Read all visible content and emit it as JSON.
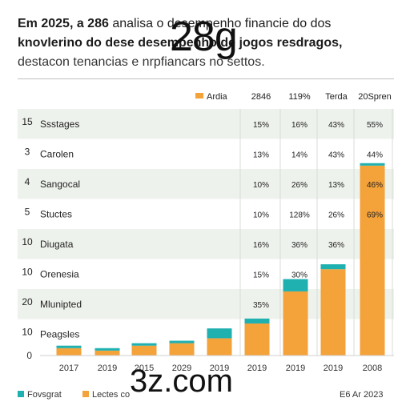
{
  "header": {
    "line1_bold": "Em 2025, a 286",
    "line1_rest": "analisa o desempenho financie do dos",
    "line2_bold": "knovlerino do dese desempenho de jogos resdragos,",
    "line3": "destacon tenancias e nrpfiancars no settos.",
    "overlay": "28g"
  },
  "chart_data": {
    "type": "table",
    "table": {
      "headers": [
        "Ardia",
        "2846",
        "119%",
        "Terda",
        "20Spren"
      ],
      "rows": [
        {
          "num": "15",
          "label": "Ssstages",
          "values": [
            "15%",
            "16%",
            "43%",
            "55%"
          ]
        },
        {
          "num": "3",
          "label": "Carolen",
          "values": [
            "13%",
            "14%",
            "43%",
            "44%"
          ]
        },
        {
          "num": "4",
          "label": "Sangocal",
          "values": [
            "10%",
            "26%",
            "13%",
            "46%"
          ]
        },
        {
          "num": "5",
          "label": "Stuctes",
          "values": [
            "10%",
            "128%",
            "26%",
            "69%"
          ]
        },
        {
          "num": "10",
          "label": "Diugata",
          "values": [
            "16%",
            "36%",
            "36%",
            ""
          ]
        },
        {
          "num": "10",
          "label": "Orenesia",
          "values": [
            "15%",
            "30%",
            "",
            ""
          ]
        },
        {
          "num": "20",
          "label": "Mlunipted",
          "values": [
            "35%",
            "",
            "",
            ""
          ]
        },
        {
          "num": "10",
          "label": "Peagsles",
          "values": [
            "",
            "",
            "",
            ""
          ]
        }
      ]
    },
    "bar": {
      "type": "bar",
      "categories": [
        "2017",
        "2019",
        "2015",
        "2029",
        "2019",
        "2019",
        "2019",
        "2019",
        "2008"
      ],
      "zero_label": "0",
      "ylim": [
        0,
        100
      ],
      "series": [
        {
          "values": [
            3,
            2,
            4,
            5,
            7,
            13,
            26,
            35,
            77
          ]
        },
        {
          "values": [
            1,
            1,
            1,
            1,
            4,
            2,
            5,
            2,
            1
          ]
        }
      ]
    },
    "colors": {
      "orange": "#f4a23a",
      "teal": "#1fb0b0",
      "band": "#eef2ec"
    },
    "legend_position": "bottom"
  },
  "legend_top": {
    "label": "Ardia",
    "color": "#f4a23a"
  },
  "footer": {
    "legend1": "Fovsgrat",
    "legend2": "Lectes",
    "legend2_rest": "co",
    "source": "E6 Ar 2023"
  },
  "brand": "3z.com"
}
